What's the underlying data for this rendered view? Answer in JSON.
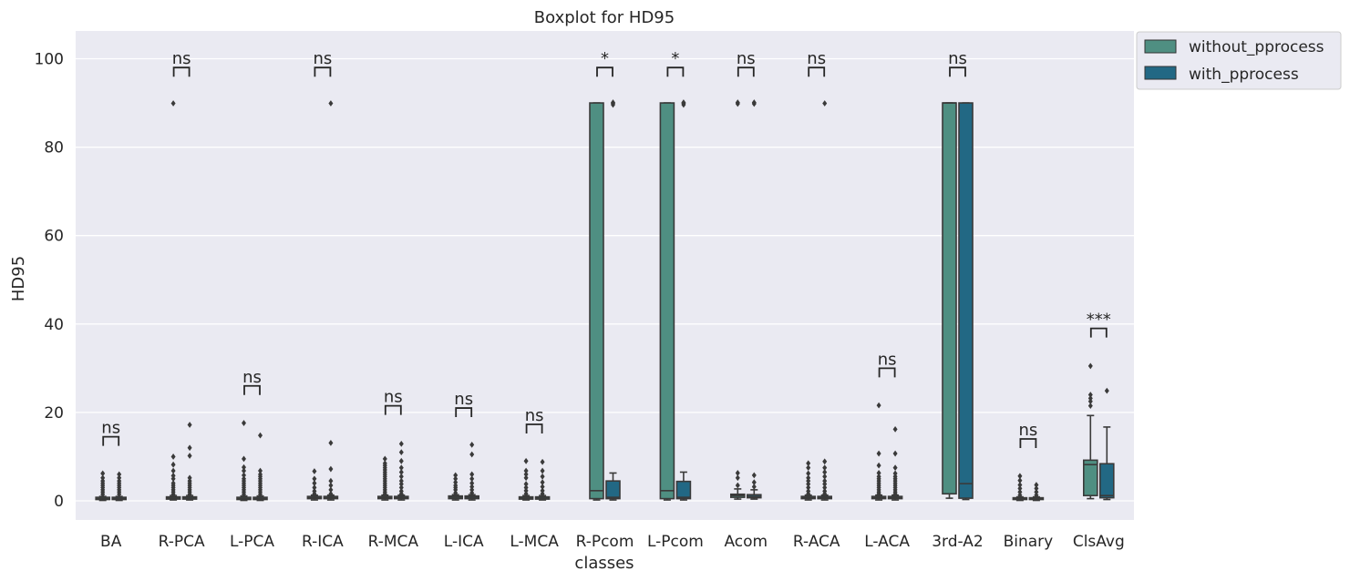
{
  "chart_data": {
    "type": "box",
    "title": "Boxplot for HD95",
    "xlabel": "classes",
    "ylabel": "HD95",
    "ylim": [
      -4,
      106
    ],
    "yticks": [
      0,
      20,
      40,
      60,
      80,
      100
    ],
    "grid": true,
    "legend_position": "outside-top-right",
    "categories": [
      "BA",
      "R-PCA",
      "L-PCA",
      "R-ICA",
      "R-MCA",
      "L-ICA",
      "L-MCA",
      "R-Pcom",
      "L-Pcom",
      "Acom",
      "R-ACA",
      "L-ACA",
      "3rd-A2",
      "Binary",
      "ClsAvg"
    ],
    "series": [
      {
        "name": "without_pprocess",
        "color": "#4f8f82",
        "boxes": [
          {
            "q1": 0.3,
            "median": 0.5,
            "q3": 0.8,
            "whislo": 0.1,
            "whishi": 1.0,
            "fliers": [
              1.5,
              2,
              2.5,
              3,
              3.5,
              4,
              4.5,
              5.2,
              6.2
            ]
          },
          {
            "q1": 0.4,
            "median": 0.6,
            "q3": 0.9,
            "whislo": 0.2,
            "whishi": 1.2,
            "fliers": [
              1.5,
              2,
              2.5,
              3,
              3.5,
              4,
              5,
              5.7,
              6.8,
              8.2,
              10,
              89.9
            ]
          },
          {
            "q1": 0.3,
            "median": 0.5,
            "q3": 0.8,
            "whislo": 0.1,
            "whishi": 1.1,
            "fliers": [
              1.5,
              2,
              2.5,
              3,
              3.5,
              4,
              4.5,
              5,
              5.8,
              6.8,
              7.6,
              9.5,
              17.6
            ]
          },
          {
            "q1": 0.5,
            "median": 0.7,
            "q3": 1.0,
            "whislo": 0.2,
            "whishi": 1.3,
            "fliers": [
              1.6,
              2.2,
              3,
              4,
              5,
              6.7
            ]
          },
          {
            "q1": 0.5,
            "median": 0.7,
            "q3": 1.0,
            "whislo": 0.2,
            "whishi": 1.3,
            "fliers": [
              1.6,
              2,
              2.5,
              3,
              3.5,
              4,
              4.5,
              5,
              5.5,
              6,
              6.5,
              7,
              7.5,
              8,
              8.5,
              9.5
            ]
          },
          {
            "q1": 0.5,
            "median": 0.8,
            "q3": 1.1,
            "whislo": 0.2,
            "whishi": 1.4,
            "fliers": [
              1.8,
              2.5,
              3,
              3.5,
              4.2,
              5,
              5.8
            ]
          },
          {
            "q1": 0.4,
            "median": 0.6,
            "q3": 0.9,
            "whislo": 0.2,
            "whishi": 1.2,
            "fliers": [
              1.6,
              2.3,
              3,
              3.8,
              5.2,
              6,
              6.8,
              9
            ]
          },
          {
            "q1": 0.5,
            "median": 2.3,
            "q3": 90,
            "whislo": 0.2,
            "whishi": 90,
            "fliers": []
          },
          {
            "q1": 0.5,
            "median": 2.3,
            "q3": 90,
            "whislo": 0.2,
            "whishi": 90,
            "fliers": []
          },
          {
            "q1": 0.8,
            "median": 1.2,
            "q3": 1.5,
            "whislo": 0.4,
            "whishi": 2.7,
            "fliers": [
              3.5,
              5.2,
              6.3,
              89.8,
              90.1
            ]
          },
          {
            "q1": 0.5,
            "median": 0.7,
            "q3": 1.0,
            "whislo": 0.2,
            "whishi": 1.3,
            "fliers": [
              1.6,
              2.2,
              3,
              3.8,
              4.5,
              5.2,
              6.2,
              7.5,
              8.5
            ]
          },
          {
            "q1": 0.5,
            "median": 0.7,
            "q3": 1.0,
            "whislo": 0.2,
            "whishi": 1.3,
            "fliers": [
              1.6,
              2,
              2.5,
              3,
              3.5,
              4,
              4.5,
              5,
              5.5,
              6.3,
              8,
              10.7,
              21.6
            ]
          },
          {
            "q1": 1.6,
            "median": 90,
            "q3": 90,
            "whislo": 0.6,
            "whishi": 90,
            "fliers": []
          },
          {
            "q1": 0.3,
            "median": 0.5,
            "q3": 0.7,
            "whislo": 0.1,
            "whishi": 0.9,
            "fliers": [
              1.3,
              2,
              2.8,
              3.6,
              4.6,
              5.6
            ]
          },
          {
            "q1": 1.2,
            "median": 8.2,
            "q3": 9.2,
            "whislo": 0.5,
            "whishi": 19.3,
            "fliers": [
              21.5,
              22.5,
              23.2,
              24,
              30.5
            ]
          }
        ]
      },
      {
        "name": "with_pprocess",
        "color": "#226884",
        "boxes": [
          {
            "q1": 0.3,
            "median": 0.5,
            "q3": 0.8,
            "whislo": 0.1,
            "whishi": 1.0,
            "fliers": [
              1.5,
              2,
              2.5,
              3,
              3.5,
              4,
              4.5,
              5.2,
              6
            ]
          },
          {
            "q1": 0.4,
            "median": 0.6,
            "q3": 0.9,
            "whislo": 0.2,
            "whishi": 1.2,
            "fliers": [
              1.5,
              2,
              2.5,
              3,
              3.5,
              4,
              4.5,
              5.2,
              10.2,
              12,
              17.2
            ]
          },
          {
            "q1": 0.3,
            "median": 0.5,
            "q3": 0.8,
            "whislo": 0.1,
            "whishi": 1.1,
            "fliers": [
              1.5,
              2,
              2.5,
              3,
              3.5,
              4,
              4.5,
              5,
              5.5,
              6,
              6.8,
              14.8
            ]
          },
          {
            "q1": 0.5,
            "median": 0.7,
            "q3": 1.0,
            "whislo": 0.2,
            "whishi": 1.3,
            "fliers": [
              1.6,
              2.5,
              3.5,
              4.5,
              7.2,
              13.1,
              89.9
            ]
          },
          {
            "q1": 0.5,
            "median": 0.7,
            "q3": 1.0,
            "whislo": 0.2,
            "whishi": 1.3,
            "fliers": [
              1.6,
              2.2,
              3,
              3.8,
              4.5,
              5.5,
              6.5,
              7.5,
              9,
              11,
              12.9
            ]
          },
          {
            "q1": 0.5,
            "median": 0.8,
            "q3": 1.1,
            "whislo": 0.2,
            "whishi": 1.4,
            "fliers": [
              1.8,
              2.5,
              3.2,
              4,
              5,
              6,
              10.5,
              12.7
            ]
          },
          {
            "q1": 0.4,
            "median": 0.6,
            "q3": 0.9,
            "whislo": 0.2,
            "whishi": 1.2,
            "fliers": [
              1.6,
              2.3,
              3.2,
              4.2,
              5.5,
              6.8,
              8.8
            ]
          },
          {
            "q1": 0.5,
            "median": 0.8,
            "q3": 4.5,
            "whislo": 0.2,
            "whishi": 6.3,
            "fliers": [
              89.6,
              89.9,
              90.1
            ]
          },
          {
            "q1": 0.5,
            "median": 0.8,
            "q3": 4.4,
            "whislo": 0.2,
            "whishi": 6.5,
            "fliers": [
              89.6,
              89.9,
              90.1
            ]
          },
          {
            "q1": 0.7,
            "median": 1.0,
            "q3": 1.4,
            "whislo": 0.4,
            "whishi": 2.5,
            "fliers": [
              3.2,
              4.2,
              5.8,
              89.8,
              90.1
            ]
          },
          {
            "q1": 0.5,
            "median": 0.7,
            "q3": 1.0,
            "whislo": 0.2,
            "whishi": 1.3,
            "fliers": [
              1.6,
              2.2,
              3,
              3.8,
              4.5,
              5.5,
              6.5,
              7.5,
              8.9,
              89.9
            ]
          },
          {
            "q1": 0.5,
            "median": 0.7,
            "q3": 1.0,
            "whislo": 0.2,
            "whishi": 1.3,
            "fliers": [
              1.6,
              2,
              2.5,
              3,
              3.5,
              4,
              4.5,
              5,
              5.5,
              6.2,
              7.5,
              10.7,
              16.2
            ]
          },
          {
            "q1": 0.6,
            "median": 3.9,
            "q3": 90,
            "whislo": 0.3,
            "whishi": 90,
            "fliers": []
          },
          {
            "q1": 0.3,
            "median": 0.5,
            "q3": 0.7,
            "whislo": 0.1,
            "whishi": 0.9,
            "fliers": [
              1.3,
              2,
              2.8,
              3.6
            ]
          },
          {
            "q1": 0.7,
            "median": 1.2,
            "q3": 8.4,
            "whislo": 0.3,
            "whishi": 16.7,
            "fliers": [
              24.9
            ]
          }
        ]
      }
    ],
    "annotations": [
      {
        "category": "BA",
        "text": "ns",
        "y": 14.5
      },
      {
        "category": "R-PCA",
        "text": "ns",
        "y": 98
      },
      {
        "category": "L-PCA",
        "text": "ns",
        "y": 26
      },
      {
        "category": "R-ICA",
        "text": "ns",
        "y": 98
      },
      {
        "category": "R-MCA",
        "text": "ns",
        "y": 21.5
      },
      {
        "category": "L-ICA",
        "text": "ns",
        "y": 21
      },
      {
        "category": "L-MCA",
        "text": "ns",
        "y": 17.3
      },
      {
        "category": "R-Pcom",
        "text": "*",
        "y": 98
      },
      {
        "category": "L-Pcom",
        "text": "*",
        "y": 98
      },
      {
        "category": "Acom",
        "text": "ns",
        "y": 98
      },
      {
        "category": "R-ACA",
        "text": "ns",
        "y": 98
      },
      {
        "category": "L-ACA",
        "text": "ns",
        "y": 30
      },
      {
        "category": "3rd-A2",
        "text": "ns",
        "y": 98
      },
      {
        "category": "Binary",
        "text": "ns",
        "y": 14
      },
      {
        "category": "ClsAvg",
        "text": "***",
        "y": 39
      }
    ]
  }
}
